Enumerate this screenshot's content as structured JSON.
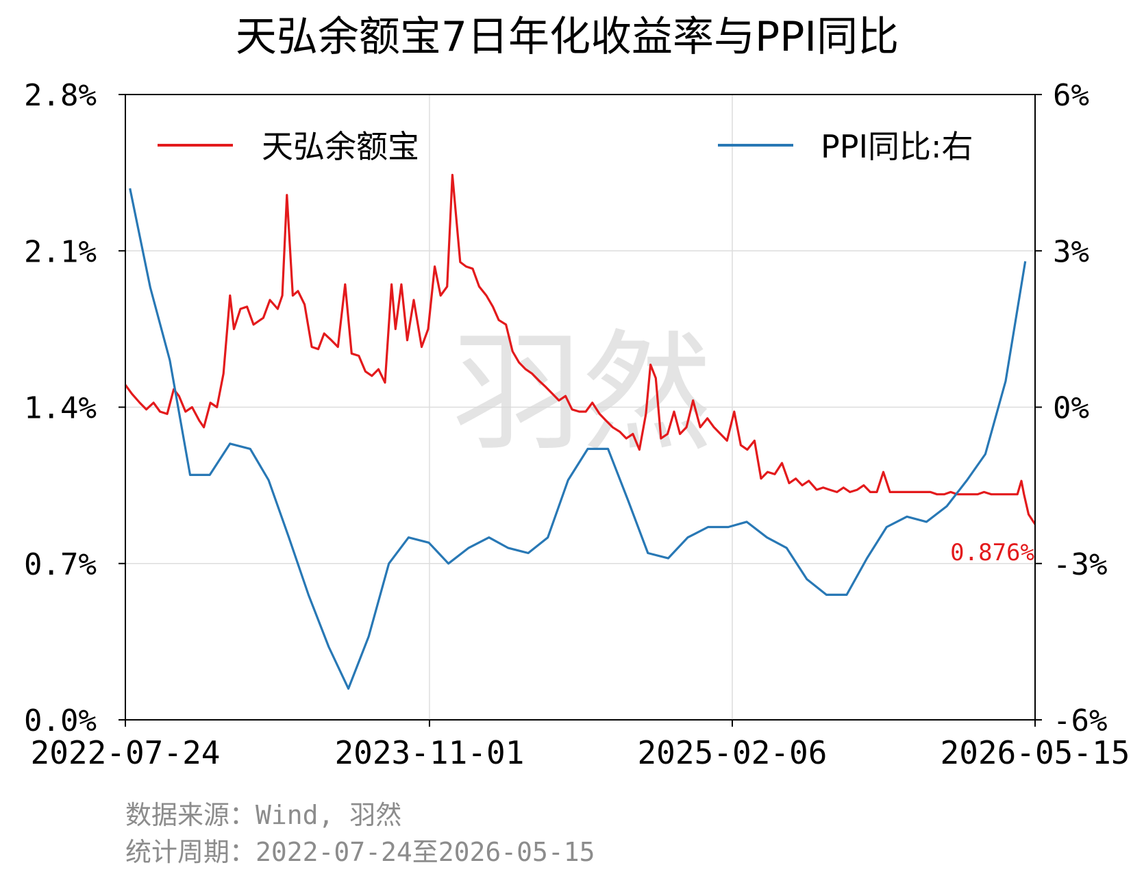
{
  "chart_data": {
    "type": "line",
    "title": "天弘余额宝7日年化收益率与PPI同比",
    "x_ticks": [
      "2022-07-24",
      "2023-11-01",
      "2025-02-06",
      "2026-05-15"
    ],
    "y_left": {
      "ticks": [
        "0.0%",
        "0.7%",
        "1.4%",
        "2.1%",
        "2.8%"
      ],
      "lim": [
        0.0,
        2.8
      ]
    },
    "y_right": {
      "ticks": [
        "-6%",
        "-3%",
        "0%",
        "3%",
        "6%"
      ],
      "lim": [
        -6,
        6
      ]
    },
    "grid": true,
    "legend_position": "top",
    "end_label": "0.876%",
    "watermark": "羽然",
    "colors": {
      "yield": "#e31a1c",
      "ppi": "#2878b5",
      "grid": "#dddddd",
      "footer": "#8c8c8c"
    },
    "series": [
      {
        "name": "天弘余额宝",
        "axis": "left",
        "color": "#e31a1c",
        "points": [
          [
            "2022-07-24",
            1.5
          ],
          [
            "2022-08-03",
            1.46
          ],
          [
            "2022-08-15",
            1.42
          ],
          [
            "2022-08-25",
            1.39
          ],
          [
            "2022-09-05",
            1.42
          ],
          [
            "2022-09-15",
            1.38
          ],
          [
            "2022-09-26",
            1.37
          ],
          [
            "2022-10-06",
            1.48
          ],
          [
            "2022-10-14",
            1.45
          ],
          [
            "2022-10-24",
            1.38
          ],
          [
            "2022-11-03",
            1.4
          ],
          [
            "2022-11-14",
            1.34
          ],
          [
            "2022-11-21",
            1.31
          ],
          [
            "2022-12-01",
            1.42
          ],
          [
            "2022-12-11",
            1.4
          ],
          [
            "2022-12-21",
            1.55
          ],
          [
            "2022-12-31",
            1.9
          ],
          [
            "2023-01-06",
            1.75
          ],
          [
            "2023-01-16",
            1.84
          ],
          [
            "2023-01-26",
            1.85
          ],
          [
            "2023-02-05",
            1.77
          ],
          [
            "2023-02-20",
            1.8
          ],
          [
            "2023-03-02",
            1.88
          ],
          [
            "2023-03-14",
            1.84
          ],
          [
            "2023-03-21",
            1.9
          ],
          [
            "2023-03-28",
            2.35
          ],
          [
            "2023-04-06",
            1.9
          ],
          [
            "2023-04-14",
            1.92
          ],
          [
            "2023-04-24",
            1.86
          ],
          [
            "2023-05-05",
            1.67
          ],
          [
            "2023-05-15",
            1.66
          ],
          [
            "2023-05-24",
            1.73
          ],
          [
            "2023-06-04",
            1.7
          ],
          [
            "2023-06-14",
            1.67
          ],
          [
            "2023-06-25",
            1.95
          ],
          [
            "2023-07-05",
            1.64
          ],
          [
            "2023-07-16",
            1.63
          ],
          [
            "2023-07-26",
            1.56
          ],
          [
            "2023-08-05",
            1.54
          ],
          [
            "2023-08-15",
            1.57
          ],
          [
            "2023-08-25",
            1.51
          ],
          [
            "2023-09-04",
            1.95
          ],
          [
            "2023-09-10",
            1.75
          ],
          [
            "2023-09-19",
            1.95
          ],
          [
            "2023-09-28",
            1.7
          ],
          [
            "2023-10-08",
            1.88
          ],
          [
            "2023-10-20",
            1.67
          ],
          [
            "2023-10-30",
            1.75
          ],
          [
            "2023-11-09",
            2.03
          ],
          [
            "2023-11-18",
            1.9
          ],
          [
            "2023-11-28",
            1.94
          ],
          [
            "2023-12-06",
            2.44
          ],
          [
            "2023-12-18",
            2.05
          ],
          [
            "2023-12-27",
            2.03
          ],
          [
            "2024-01-06",
            2.02
          ],
          [
            "2024-01-16",
            1.94
          ],
          [
            "2024-01-27",
            1.9
          ],
          [
            "2024-02-06",
            1.85
          ],
          [
            "2024-02-15",
            1.79
          ],
          [
            "2024-02-26",
            1.77
          ],
          [
            "2024-03-07",
            1.65
          ],
          [
            "2024-03-17",
            1.6
          ],
          [
            "2024-03-27",
            1.57
          ],
          [
            "2024-04-06",
            1.55
          ],
          [
            "2024-04-16",
            1.52
          ],
          [
            "2024-04-27",
            1.49
          ],
          [
            "2024-05-07",
            1.46
          ],
          [
            "2024-05-17",
            1.43
          ],
          [
            "2024-05-27",
            1.45
          ],
          [
            "2024-06-06",
            1.39
          ],
          [
            "2024-06-17",
            1.38
          ],
          [
            "2024-06-27",
            1.38
          ],
          [
            "2024-07-07",
            1.42
          ],
          [
            "2024-07-18",
            1.37
          ],
          [
            "2024-07-28",
            1.34
          ],
          [
            "2024-08-07",
            1.31
          ],
          [
            "2024-08-18",
            1.29
          ],
          [
            "2024-08-28",
            1.26
          ],
          [
            "2024-09-07",
            1.28
          ],
          [
            "2024-09-17",
            1.21
          ],
          [
            "2024-09-27",
            1.37
          ],
          [
            "2024-10-04",
            1.59
          ],
          [
            "2024-10-12",
            1.53
          ],
          [
            "2024-10-20",
            1.26
          ],
          [
            "2024-10-30",
            1.28
          ],
          [
            "2024-11-09",
            1.38
          ],
          [
            "2024-11-18",
            1.28
          ],
          [
            "2024-11-28",
            1.31
          ],
          [
            "2024-12-08",
            1.43
          ],
          [
            "2024-12-19",
            1.31
          ],
          [
            "2024-12-30",
            1.35
          ],
          [
            "2025-01-09",
            1.31
          ],
          [
            "2025-01-19",
            1.28
          ],
          [
            "2025-01-29",
            1.25
          ],
          [
            "2025-02-09",
            1.38
          ],
          [
            "2025-02-19",
            1.23
          ],
          [
            "2025-03-01",
            1.21
          ],
          [
            "2025-03-12",
            1.25
          ],
          [
            "2025-03-22",
            1.08
          ],
          [
            "2025-04-01",
            1.11
          ],
          [
            "2025-04-12",
            1.1
          ],
          [
            "2025-04-23",
            1.15
          ],
          [
            "2025-05-04",
            1.06
          ],
          [
            "2025-05-14",
            1.08
          ],
          [
            "2025-05-24",
            1.05
          ],
          [
            "2025-06-03",
            1.07
          ],
          [
            "2025-06-15",
            1.03
          ],
          [
            "2025-06-25",
            1.04
          ],
          [
            "2025-07-05",
            1.03
          ],
          [
            "2025-07-16",
            1.02
          ],
          [
            "2025-07-26",
            1.04
          ],
          [
            "2025-08-05",
            1.02
          ],
          [
            "2025-08-16",
            1.03
          ],
          [
            "2025-08-26",
            1.05
          ],
          [
            "2025-09-05",
            1.02
          ],
          [
            "2025-09-15",
            1.02
          ],
          [
            "2025-09-25",
            1.11
          ],
          [
            "2025-10-05",
            1.02
          ],
          [
            "2025-10-15",
            1.02
          ],
          [
            "2025-10-26",
            1.02
          ],
          [
            "2025-11-05",
            1.02
          ],
          [
            "2025-11-16",
            1.02
          ],
          [
            "2025-11-26",
            1.02
          ],
          [
            "2025-12-06",
            1.02
          ],
          [
            "2025-12-16",
            1.01
          ],
          [
            "2025-12-27",
            1.01
          ],
          [
            "2026-01-06",
            1.02
          ],
          [
            "2026-01-16",
            1.01
          ],
          [
            "2026-01-26",
            1.01
          ],
          [
            "2026-02-06",
            1.01
          ],
          [
            "2026-02-16",
            1.01
          ],
          [
            "2026-02-26",
            1.02
          ],
          [
            "2026-03-09",
            1.01
          ],
          [
            "2026-03-19",
            1.01
          ],
          [
            "2026-03-29",
            1.01
          ],
          [
            "2026-04-08",
            1.01
          ],
          [
            "2026-04-18",
            1.01
          ],
          [
            "2026-04-24",
            1.07
          ],
          [
            "2026-04-28",
            1.01
          ],
          [
            "2026-05-05",
            0.92
          ],
          [
            "2026-05-15",
            0.876
          ]
        ]
      },
      {
        "name": "PPI同比:右",
        "axis": "right",
        "color": "#2878b5",
        "points": [
          [
            "2022-07-31",
            4.2
          ],
          [
            "2022-08-31",
            2.3
          ],
          [
            "2022-09-30",
            0.9
          ],
          [
            "2022-10-31",
            -1.3
          ],
          [
            "2022-11-30",
            -1.3
          ],
          [
            "2022-12-31",
            -0.7
          ],
          [
            "2023-01-31",
            -0.8
          ],
          [
            "2023-02-28",
            -1.4
          ],
          [
            "2023-03-31",
            -2.5
          ],
          [
            "2023-04-30",
            -3.6
          ],
          [
            "2023-05-31",
            -4.6
          ],
          [
            "2023-06-30",
            -5.4
          ],
          [
            "2023-07-31",
            -4.4
          ],
          [
            "2023-08-31",
            -3.0
          ],
          [
            "2023-09-30",
            -2.5
          ],
          [
            "2023-10-31",
            -2.6
          ],
          [
            "2023-11-30",
            -3.0
          ],
          [
            "2023-12-31",
            -2.7
          ],
          [
            "2024-01-31",
            -2.5
          ],
          [
            "2024-02-29",
            -2.7
          ],
          [
            "2024-03-31",
            -2.8
          ],
          [
            "2024-04-30",
            -2.5
          ],
          [
            "2024-05-31",
            -1.4
          ],
          [
            "2024-06-30",
            -0.8
          ],
          [
            "2024-07-31",
            -0.8
          ],
          [
            "2024-08-31",
            -1.8
          ],
          [
            "2024-09-30",
            -2.8
          ],
          [
            "2024-10-31",
            -2.9
          ],
          [
            "2024-11-30",
            -2.5
          ],
          [
            "2024-12-31",
            -2.3
          ],
          [
            "2025-01-31",
            -2.3
          ],
          [
            "2025-02-28",
            -2.2
          ],
          [
            "2025-03-31",
            -2.5
          ],
          [
            "2025-04-30",
            -2.7
          ],
          [
            "2025-05-31",
            -3.3
          ],
          [
            "2025-06-30",
            -3.6
          ],
          [
            "2025-07-31",
            -3.6
          ],
          [
            "2025-08-31",
            -2.9
          ],
          [
            "2025-09-30",
            -2.3
          ],
          [
            "2025-10-31",
            -2.1
          ],
          [
            "2025-11-30",
            -2.2
          ],
          [
            "2025-12-31",
            -1.9
          ],
          [
            "2026-01-31",
            -1.4
          ],
          [
            "2026-02-28",
            -0.9
          ],
          [
            "2026-03-31",
            0.5
          ],
          [
            "2026-04-30",
            2.8
          ]
        ]
      }
    ]
  },
  "footer": {
    "source": "数据来源：Wind, 羽然",
    "period": "统计周期：2022-07-24至2026-05-15"
  }
}
